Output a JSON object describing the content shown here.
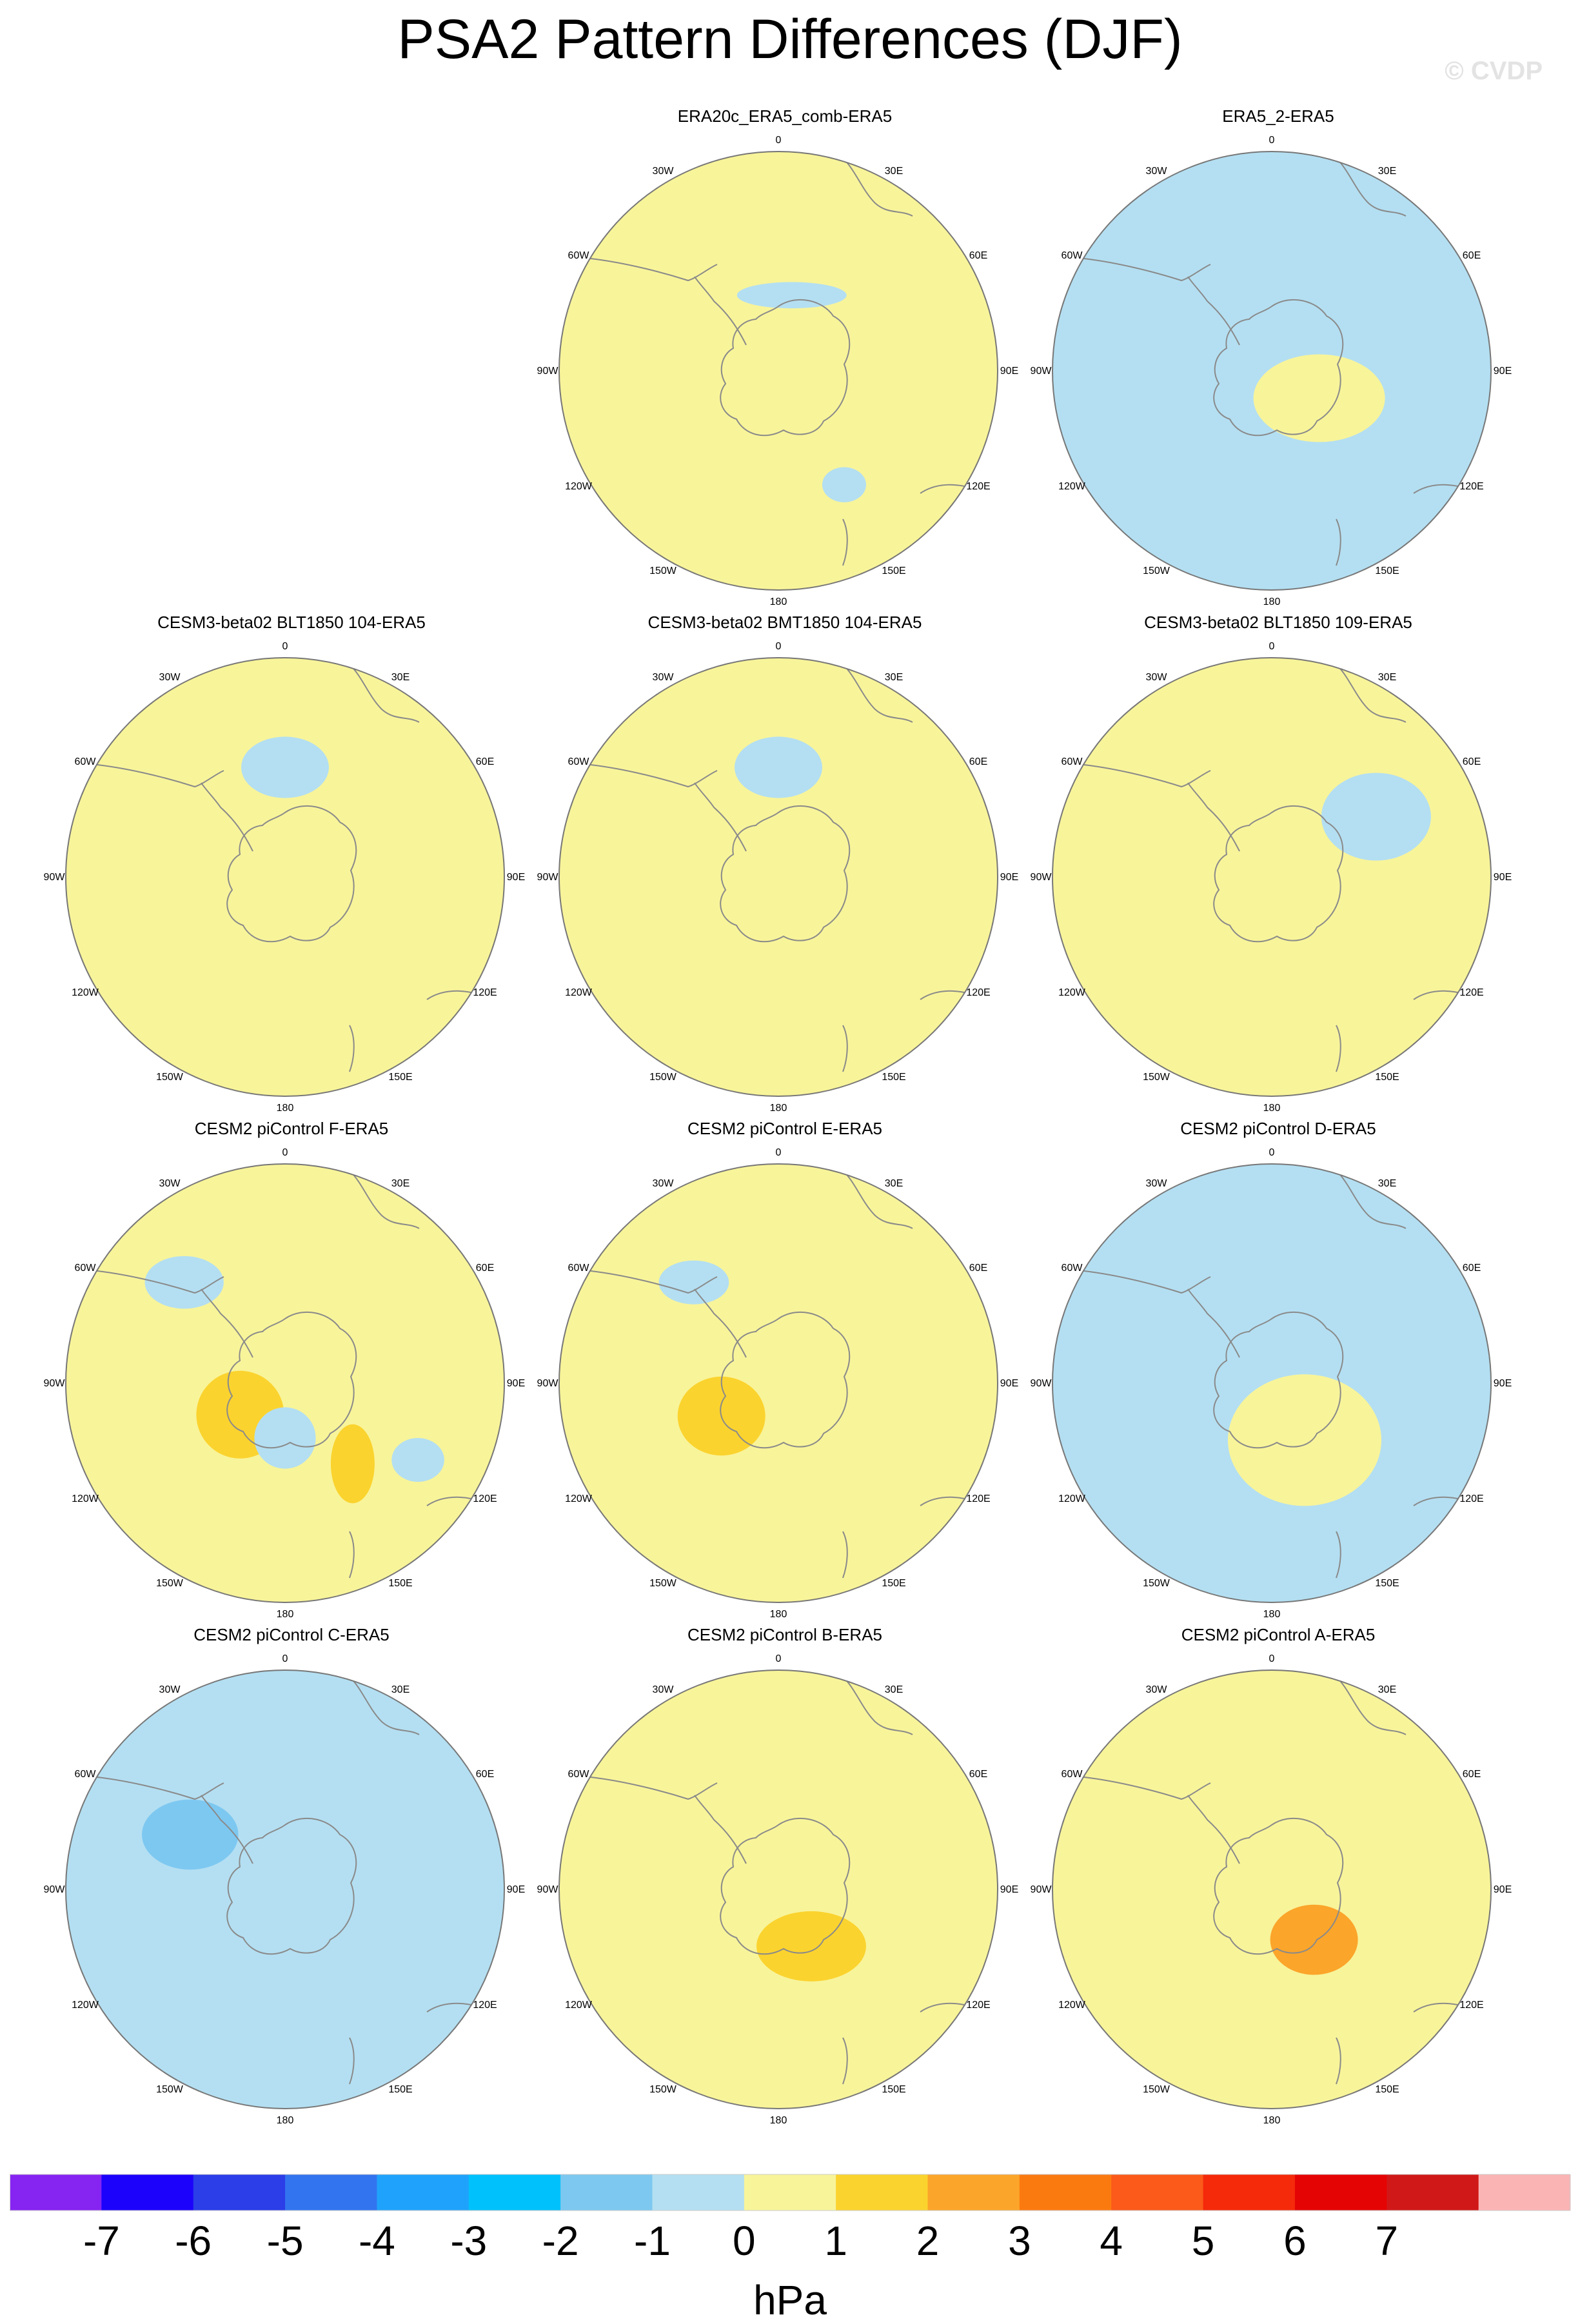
{
  "title": "PSA2 Pattern Differences (DJF)",
  "watermark": "© CVDP",
  "lon_labels": [
    "0",
    "30E",
    "60E",
    "90E",
    "120E",
    "150E",
    "180",
    "150W",
    "120W",
    "90W",
    "60W",
    "30W"
  ],
  "colors": {
    "land_outline": "#8a8a8a",
    "map_border": "#777777"
  },
  "panels": [
    {
      "title": "ERA20c_ERA5_comb-ERA5",
      "bg": "#f8f49a",
      "blobs": [
        {
          "lon": 10,
          "r": 0.35,
          "rx": 0.25,
          "ry": 0.06,
          "color": "#b4dff2"
        },
        {
          "lon": 150,
          "r": 0.6,
          "rx": 0.1,
          "ry": 0.08,
          "color": "#b4dff2"
        }
      ]
    },
    {
      "title": "ERA5_2-ERA5",
      "bg": "#b4dff2",
      "blobs": [
        {
          "lon": 120,
          "r": 0.25,
          "rx": 0.3,
          "ry": 0.2,
          "color": "#f8f49a"
        }
      ]
    },
    {
      "title": "CESM3-beta02 BLT1850 104-ERA5",
      "bg": "#f8f49a",
      "blobs": [
        {
          "lon": 0,
          "r": 0.5,
          "rx": 0.2,
          "ry": 0.14,
          "color": "#b4dff2"
        }
      ]
    },
    {
      "title": "CESM3-beta02 BMT1850 104-ERA5",
      "bg": "#f8f49a",
      "blobs": [
        {
          "lon": 0,
          "r": 0.5,
          "rx": 0.2,
          "ry": 0.14,
          "color": "#b4dff2"
        }
      ]
    },
    {
      "title": "CESM3-beta02 BLT1850 109-ERA5",
      "bg": "#f8f49a",
      "blobs": [
        {
          "lon": 60,
          "r": 0.55,
          "rx": 0.25,
          "ry": 0.2,
          "color": "#b4dff2"
        }
      ]
    },
    {
      "title": "CESM2 piControl F-ERA5",
      "bg": "#f8f49a",
      "blobs": [
        {
          "lon": 315,
          "r": 0.65,
          "rx": 0.18,
          "ry": 0.12,
          "color": "#b4dff2"
        },
        {
          "lon": 120,
          "r": 0.7,
          "rx": 0.12,
          "ry": 0.1,
          "color": "#b4dff2"
        },
        {
          "lon": 235,
          "r": 0.25,
          "rx": 0.2,
          "ry": 0.2,
          "color": "#fbd32e"
        },
        {
          "lon": 180,
          "r": 0.25,
          "rx": 0.14,
          "ry": 0.14,
          "color": "#b4dff2"
        },
        {
          "lon": 140,
          "r": 0.48,
          "rx": 0.1,
          "ry": 0.18,
          "color": "#fbd32e"
        }
      ]
    },
    {
      "title": "CESM2 piControl E-ERA5",
      "bg": "#f8f49a",
      "blobs": [
        {
          "lon": 320,
          "r": 0.6,
          "rx": 0.16,
          "ry": 0.1,
          "color": "#b4dff2"
        },
        {
          "lon": 240,
          "r": 0.3,
          "rx": 0.2,
          "ry": 0.18,
          "color": "#fbd32e"
        }
      ]
    },
    {
      "title": "CESM2 piControl D-ERA5",
      "bg": "#b4dff2",
      "blobs": [
        {
          "lon": 150,
          "r": 0.3,
          "rx": 0.35,
          "ry": 0.3,
          "color": "#f8f49a"
        }
      ]
    },
    {
      "title": "CESM2 piControl C-ERA5",
      "bg": "#b4dff2",
      "blobs": [
        {
          "lon": 300,
          "r": 0.5,
          "rx": 0.22,
          "ry": 0.16,
          "color": "#7dc8f1"
        }
      ]
    },
    {
      "title": "CESM2 piControl B-ERA5",
      "bg": "#f8f49a",
      "blobs": [
        {
          "lon": 150,
          "r": 0.3,
          "rx": 0.25,
          "ry": 0.16,
          "color": "#fbd32e"
        }
      ]
    },
    {
      "title": "CESM2 piControl A-ERA5",
      "bg": "#f8f49a",
      "blobs": [
        {
          "lon": 140,
          "r": 0.3,
          "rx": 0.2,
          "ry": 0.16,
          "color": "#fba52a"
        }
      ]
    }
  ],
  "colorbar": {
    "boxes": [
      "#8624f2",
      "#1c02fb",
      "#2b3ee8",
      "#3274ef",
      "#1fa2fb",
      "#00c1fb",
      "#7dc8f1",
      "#b4dff2",
      "#f8f49a",
      "#fbd32e",
      "#fba52a",
      "#fb7a10",
      "#fb5a1a",
      "#f52a0a",
      "#e50404",
      "#d01818",
      "#fbb4b4"
    ],
    "labels": [
      "-7",
      "-6",
      "-5",
      "-4",
      "-3",
      "-2",
      "-1",
      "0",
      "1",
      "2",
      "3",
      "4",
      "5",
      "6",
      "7"
    ],
    "units": "hPa"
  }
}
